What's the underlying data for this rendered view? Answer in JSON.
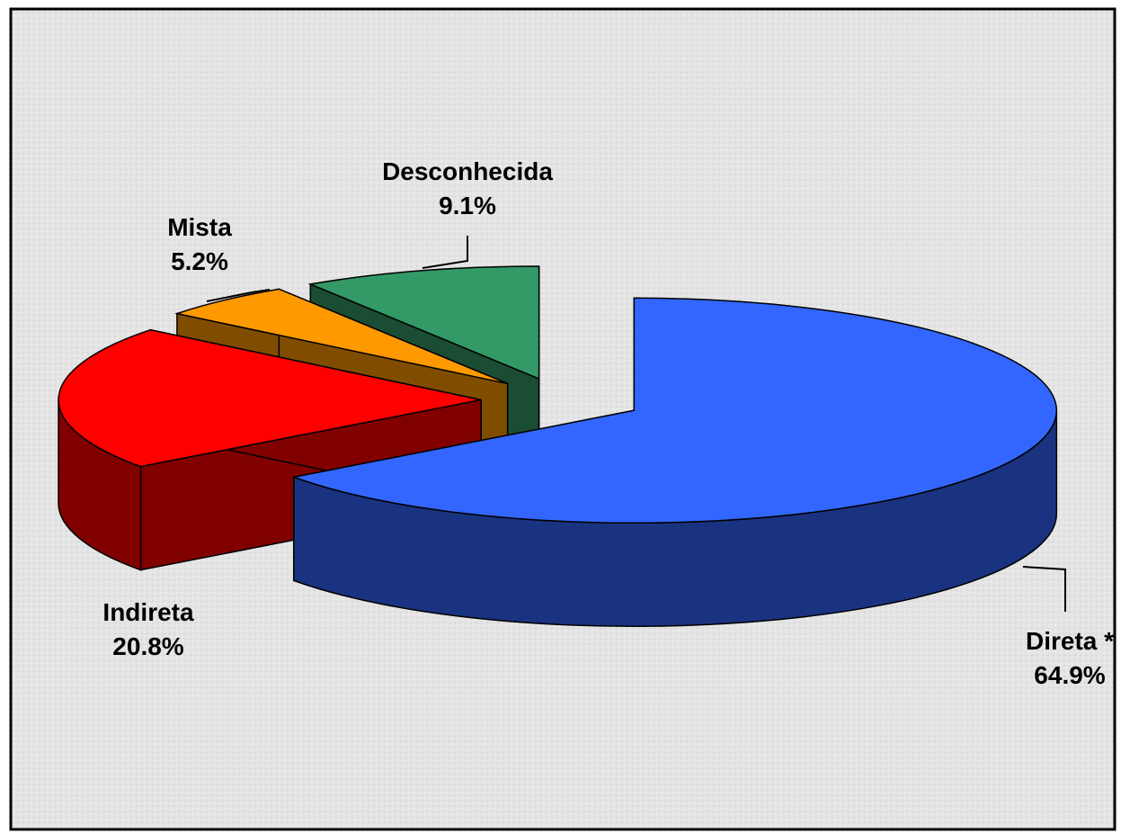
{
  "chart_data": {
    "type": "pie3d",
    "categories": [
      "Direta *",
      "Indireta",
      "Mista",
      "Desconhecida"
    ],
    "values": [
      64.9,
      20.8,
      5.2,
      9.1
    ],
    "value_labels": [
      "64.9%",
      "20.8%",
      "5.2%",
      "9.1%"
    ],
    "colors": [
      "#3366ff",
      "#ff0000",
      "#ff9900",
      "#339966"
    ]
  }
}
